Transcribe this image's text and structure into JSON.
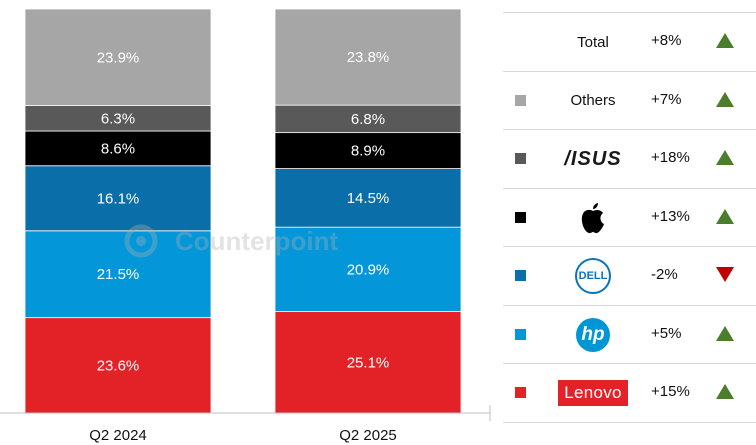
{
  "chart_data": {
    "type": "stacked-bar",
    "categories": [
      "Q2 2024",
      "Q2 2025"
    ],
    "series": [
      {
        "name": "Lenovo",
        "values": [
          23.6,
          25.1
        ],
        "labels": [
          "23.6%",
          "25.1%"
        ],
        "color": "#e32227"
      },
      {
        "name": "HP",
        "values": [
          21.5,
          20.9
        ],
        "labels": [
          "21.5%",
          "20.9%"
        ],
        "color": "#0397d9"
      },
      {
        "name": "Dell",
        "values": [
          16.1,
          14.5
        ],
        "labels": [
          "16.1%",
          "14.5%"
        ],
        "color": "#0a6fa8"
      },
      {
        "name": "Apple",
        "values": [
          8.6,
          8.9
        ],
        "labels": [
          "8.6%",
          "8.9%"
        ],
        "color": "#000000"
      },
      {
        "name": "ASUS",
        "values": [
          6.3,
          6.8
        ],
        "labels": [
          "6.3%",
          "6.8%"
        ],
        "color": "#595959"
      },
      {
        "name": "Others",
        "values": [
          23.9,
          23.8
        ],
        "labels": [
          "23.9%",
          "23.8%"
        ],
        "color": "#a6a6a6"
      }
    ],
    "ylim": [
      0,
      100
    ]
  },
  "watermark": "Counterpoint",
  "legend": {
    "rows": [
      {
        "name": "Total",
        "growth": "+8%",
        "direction": "up",
        "swatch": null
      },
      {
        "name": "Others",
        "growth": "+7%",
        "direction": "up",
        "swatch": "#a6a6a6"
      },
      {
        "name": "ASUS",
        "logo_text": "/ISUS",
        "growth": "+18%",
        "direction": "up",
        "swatch": "#595959"
      },
      {
        "name": "Apple",
        "growth": "+13%",
        "direction": "up",
        "swatch": "#000000"
      },
      {
        "name": "Dell",
        "logo_text": "DELL",
        "growth": "-2%",
        "direction": "down",
        "swatch": "#0a6fa8"
      },
      {
        "name": "HP",
        "logo_text": "hp",
        "growth": "+5%",
        "direction": "up",
        "swatch": "#0397d9"
      },
      {
        "name": "Lenovo",
        "logo_text": "Lenovo",
        "growth": "+15%",
        "direction": "up",
        "swatch": "#e32227"
      }
    ]
  }
}
